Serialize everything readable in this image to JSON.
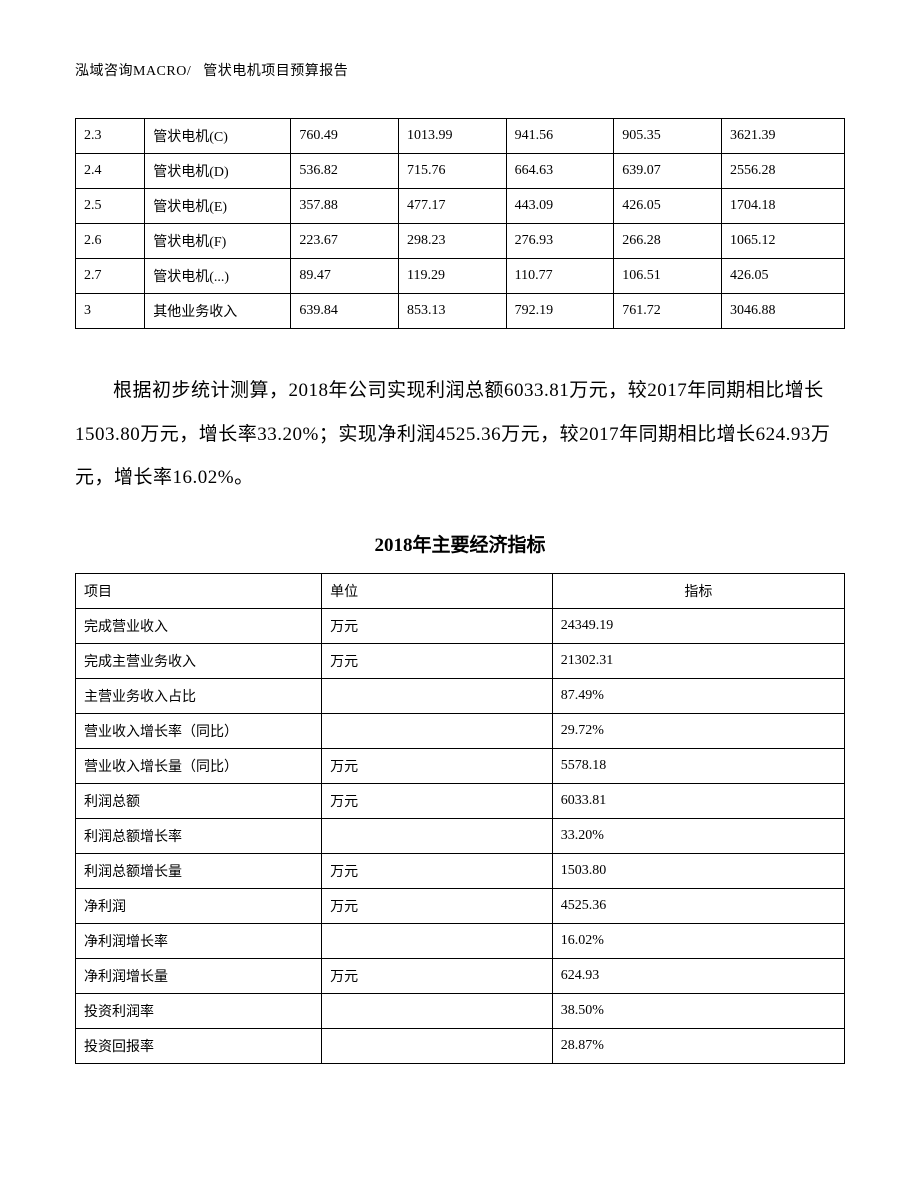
{
  "header": {
    "company": "泓域咨询MACRO/",
    "doc_title": "管状电机项目预算报告"
  },
  "table1": {
    "col_widths": [
      "9%",
      "19%",
      "14%",
      "14%",
      "14%",
      "14%",
      "16%"
    ],
    "rows": [
      [
        "2.3",
        "管状电机(C)",
        "760.49",
        "1013.99",
        "941.56",
        "905.35",
        "3621.39"
      ],
      [
        "2.4",
        "管状电机(D)",
        "536.82",
        "715.76",
        "664.63",
        "639.07",
        "2556.28"
      ],
      [
        "2.5",
        "管状电机(E)",
        "357.88",
        "477.17",
        "443.09",
        "426.05",
        "1704.18"
      ],
      [
        "2.6",
        "管状电机(F)",
        "223.67",
        "298.23",
        "276.93",
        "266.28",
        "1065.12"
      ],
      [
        "2.7",
        "管状电机(...)",
        "89.47",
        "119.29",
        "110.77",
        "106.51",
        "426.05"
      ],
      [
        "3",
        "其他业务收入",
        "639.84",
        "853.13",
        "792.19",
        "761.72",
        "3046.88"
      ]
    ]
  },
  "paragraph": "根据初步统计测算，2018年公司实现利润总额6033.81万元，较2017年同期相比增长1503.80万元，增长率33.20%；实现净利润4525.36万元，较2017年同期相比增长624.93万元，增长率16.02%。",
  "table2_title": "2018年主要经济指标",
  "table2": {
    "headers": [
      "项目",
      "单位",
      "指标"
    ],
    "rows": [
      [
        "完成营业收入",
        "万元",
        "24349.19"
      ],
      [
        "完成主营业务收入",
        "万元",
        "21302.31"
      ],
      [
        "主营业务收入占比",
        "",
        "87.49%"
      ],
      [
        "营业收入增长率（同比）",
        "",
        "29.72%"
      ],
      [
        "营业收入增长量（同比）",
        "万元",
        "5578.18"
      ],
      [
        "利润总额",
        "万元",
        "6033.81"
      ],
      [
        "利润总额增长率",
        "",
        "33.20%"
      ],
      [
        "利润总额增长量",
        "万元",
        "1503.80"
      ],
      [
        "净利润",
        "万元",
        "4525.36"
      ],
      [
        "净利润增长率",
        "",
        "16.02%"
      ],
      [
        "净利润增长量",
        "万元",
        "624.93"
      ],
      [
        "投资利润率",
        "",
        "38.50%"
      ],
      [
        "投资回报率",
        "",
        "28.87%"
      ]
    ]
  }
}
